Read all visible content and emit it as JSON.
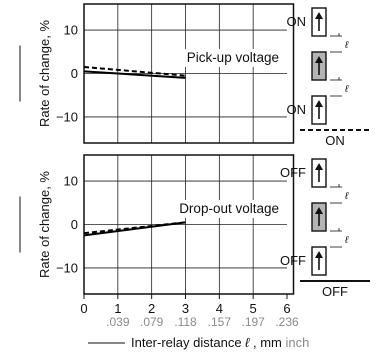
{
  "chart_data": [
    {
      "type": "line",
      "title": "Pick-up voltage",
      "ylabel": "Rate of change, %",
      "xlim": [
        0,
        6
      ],
      "ylim": [
        -16,
        16
      ],
      "yticks": [
        10,
        0,
        -10
      ],
      "yticklabels": [
        "10",
        "0",
        "−10"
      ],
      "grid": true,
      "series": [
        {
          "style": "solid",
          "x": [
            0,
            3
          ],
          "y": [
            0.5,
            -1.0
          ]
        },
        {
          "style": "dashed",
          "x": [
            0,
            3
          ],
          "y": [
            1.5,
            -0.5
          ]
        }
      ],
      "diagram": {
        "top_label": "ON",
        "bottom_label": "ON",
        "legend_label": "ON",
        "legend_style": "dashed",
        "ell": "ℓ"
      }
    },
    {
      "type": "line",
      "title": "Drop-out voltage",
      "ylabel": "Rate of change, %",
      "xlim": [
        0,
        6
      ],
      "ylim": [
        -16,
        16
      ],
      "yticks": [
        10,
        0,
        -10
      ],
      "yticklabels": [
        "10",
        "0",
        "−10"
      ],
      "grid": true,
      "series": [
        {
          "style": "solid",
          "x": [
            0,
            3
          ],
          "y": [
            -2.5,
            0.5
          ]
        },
        {
          "style": "dashed",
          "x": [
            0,
            3
          ],
          "y": [
            -2.0,
            0.5
          ]
        }
      ],
      "diagram": {
        "top_label": "OFF",
        "bottom_label": "OFF",
        "legend_label": "OFF",
        "legend_style": "solid",
        "ell": "ℓ"
      }
    }
  ],
  "x_axis": {
    "ticks": [
      0,
      1,
      2,
      3,
      4,
      5,
      6
    ],
    "mm_labels": [
      "0",
      "1",
      "2",
      "3",
      "4",
      "5",
      "6"
    ],
    "inch_labels": [
      ".039",
      ".079",
      ".118",
      ".157",
      ".197",
      ".236"
    ],
    "inch_ticks": [
      1,
      2,
      3,
      4,
      5,
      6
    ],
    "xlabel_main": "Inter-relay distance",
    "xlabel_symbol": "ℓ",
    "xlabel_unit": ", mm",
    "xlabel_alt_unit": "inch"
  }
}
